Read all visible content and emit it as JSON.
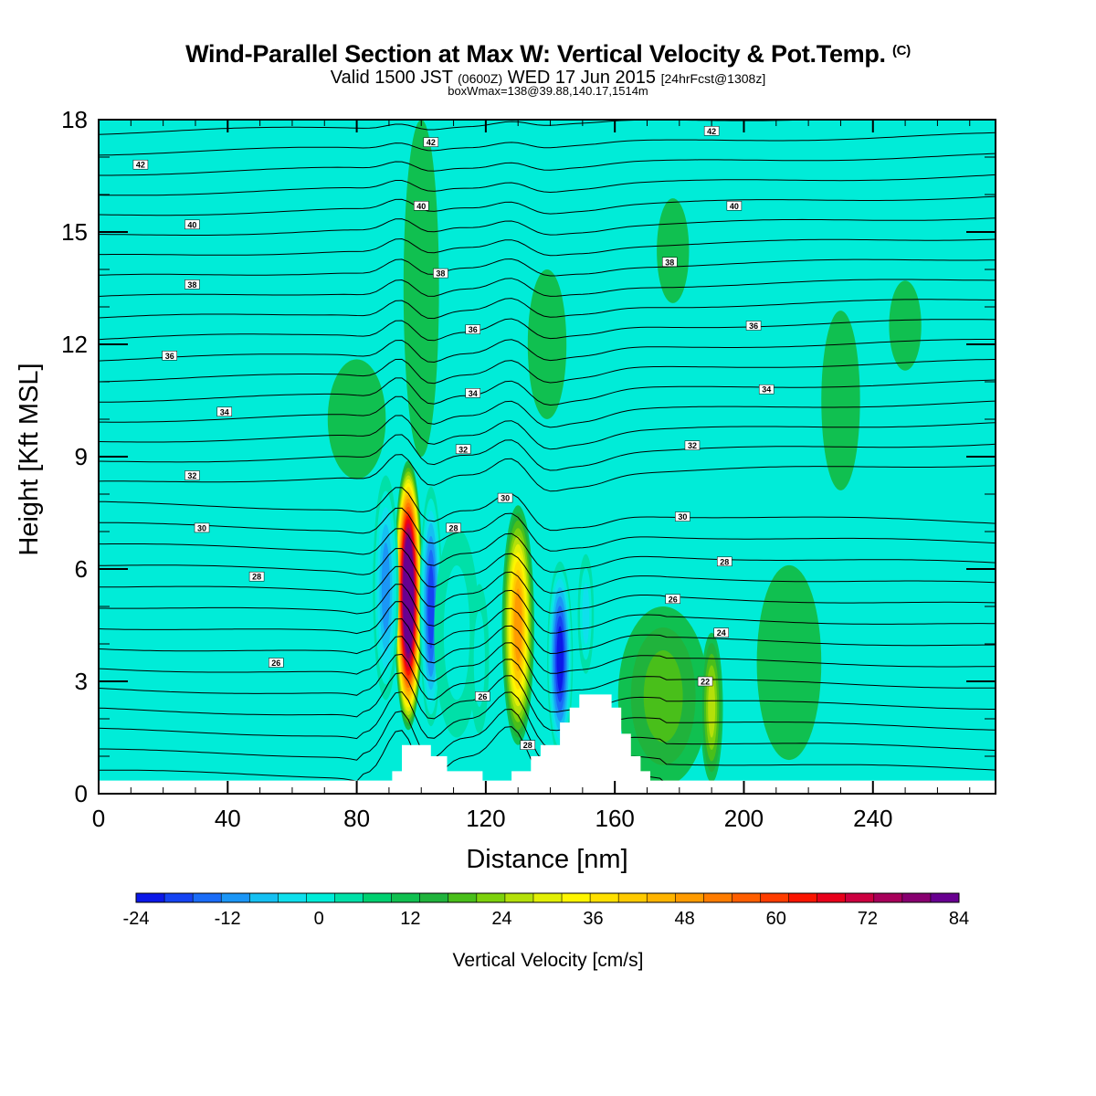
{
  "header": {
    "title_main": "Wind-Parallel Section at Max W: Vertical Velocity & Pot.Temp.",
    "title_mark": "(C)",
    "valid_prefix": "Valid 1500 JST",
    "valid_z": "(0600Z)",
    "valid_date": "WED 17 Jun 2015",
    "valid_fcst": "[24hrFcst@1308z]",
    "boxwmax": "boxWmax=138@39.88,140.17,1514m"
  },
  "chart_data": {
    "type": "heatmap",
    "xlabel": "Distance [nm]",
    "ylabel": "Height [Kft MSL]",
    "xlim": [
      0,
      278
    ],
    "ylim": [
      0,
      18
    ],
    "x_ticks": [
      0,
      40,
      80,
      120,
      160,
      200,
      240
    ],
    "y_ticks": [
      0,
      3,
      6,
      9,
      12,
      15,
      18
    ],
    "colorbar": {
      "title": "Vertical Velocity [cm/s]",
      "ticks": [
        -24,
        -12,
        0,
        12,
        24,
        36,
        48,
        60,
        72,
        84
      ],
      "levels": [
        -24,
        -21,
        -18,
        -15,
        -12,
        -9,
        -6,
        -3,
        0,
        3,
        6,
        9,
        12,
        15,
        18,
        21,
        24,
        27,
        30,
        33,
        36,
        39,
        42,
        45,
        48,
        51,
        54,
        57,
        60,
        63,
        66,
        69,
        72,
        75,
        78,
        81,
        84
      ],
      "colors": [
        "#0b18e8",
        "#1543f2",
        "#1a6cf7",
        "#1b96f6",
        "#15c0f2",
        "#0fdfec",
        "#00ecd8",
        "#00e0a8",
        "#00d070",
        "#10c050",
        "#20b33c",
        "#49bf1a",
        "#7dd10c",
        "#b4e00a",
        "#e2ef05",
        "#fff500",
        "#ffe000",
        "#ffca00",
        "#ffb400",
        "#ff9b00",
        "#ff7c00",
        "#ff5e00",
        "#ff3d00",
        "#fa1500",
        "#e8001b",
        "#cc0040",
        "#a8005a",
        "#880070",
        "#680090"
      ],
      "background_level": "0 to 3",
      "background_color": "#00ecd8"
    },
    "theta_contour_labels": [
      {
        "x": 13,
        "y": 16.8,
        "text": "42"
      },
      {
        "x": 103,
        "y": 17.4,
        "text": "42"
      },
      {
        "x": 190,
        "y": 17.7,
        "text": "42"
      },
      {
        "x": 29,
        "y": 15.2,
        "text": "40"
      },
      {
        "x": 100,
        "y": 15.7,
        "text": "40"
      },
      {
        "x": 197,
        "y": 15.7,
        "text": "40"
      },
      {
        "x": 29,
        "y": 13.6,
        "text": "38"
      },
      {
        "x": 106,
        "y": 13.9,
        "text": "38"
      },
      {
        "x": 177,
        "y": 14.2,
        "text": "38"
      },
      {
        "x": 22,
        "y": 11.7,
        "text": "36"
      },
      {
        "x": 116,
        "y": 12.4,
        "text": "36"
      },
      {
        "x": 203,
        "y": 12.5,
        "text": "36"
      },
      {
        "x": 39,
        "y": 10.2,
        "text": "34"
      },
      {
        "x": 116,
        "y": 10.7,
        "text": "34"
      },
      {
        "x": 207,
        "y": 10.8,
        "text": "34"
      },
      {
        "x": 29,
        "y": 8.5,
        "text": "32"
      },
      {
        "x": 113,
        "y": 9.2,
        "text": "32"
      },
      {
        "x": 184,
        "y": 9.3,
        "text": "32"
      },
      {
        "x": 32,
        "y": 7.1,
        "text": "30"
      },
      {
        "x": 126,
        "y": 7.9,
        "text": "30"
      },
      {
        "x": 181,
        "y": 7.4,
        "text": "30"
      },
      {
        "x": 49,
        "y": 5.8,
        "text": "28"
      },
      {
        "x": 110,
        "y": 7.1,
        "text": "28"
      },
      {
        "x": 194,
        "y": 6.2,
        "text": "28"
      },
      {
        "x": 178,
        "y": 5.2,
        "text": "26"
      },
      {
        "x": 55,
        "y": 3.5,
        "text": "26"
      },
      {
        "x": 193,
        "y": 4.3,
        "text": "24"
      },
      {
        "x": 188,
        "y": 3.0,
        "text": "22"
      },
      {
        "x": 119,
        "y": 2.6,
        "text": "26"
      },
      {
        "x": 133,
        "y": 1.3,
        "text": "28"
      }
    ],
    "terrain": {
      "x": [
        0,
        91,
        91,
        94,
        94,
        103,
        103,
        108,
        108,
        119,
        119,
        128,
        128,
        134,
        134,
        137,
        137,
        143,
        143,
        146,
        146,
        149,
        149,
        151,
        151,
        159,
        159,
        162,
        162,
        165,
        165,
        168,
        168,
        171,
        171,
        278
      ],
      "y": [
        0.35,
        0.35,
        0.6,
        0.6,
        1.3,
        1.3,
        1.0,
        1.0,
        0.6,
        0.6,
        0.35,
        0.35,
        0.6,
        0.6,
        1.0,
        1.0,
        1.3,
        1.3,
        1.9,
        1.9,
        2.3,
        2.3,
        2.65,
        2.65,
        2.65,
        2.65,
        2.3,
        2.3,
        1.6,
        1.6,
        1.0,
        1.0,
        0.6,
        0.6,
        0.35,
        0.35
      ]
    },
    "w_features": [
      {
        "x": 96,
        "y": 5.3,
        "rx": 4.5,
        "ry": 3.6,
        "w": 75
      },
      {
        "x": 103,
        "y": 5.0,
        "rx": 3.5,
        "ry": 3.2,
        "w": -22
      },
      {
        "x": 89,
        "y": 5.5,
        "rx": 4.0,
        "ry": 3.0,
        "w": -15
      },
      {
        "x": 111,
        "y": 4.3,
        "rx": 7.0,
        "ry": 2.8,
        "w": -6
      },
      {
        "x": 118,
        "y": 3.6,
        "rx": 3.0,
        "ry": 2.0,
        "w": -6
      },
      {
        "x": 130,
        "y": 4.5,
        "rx": 5.0,
        "ry": 3.2,
        "w": 33
      },
      {
        "x": 143,
        "y": 3.6,
        "rx": 4.0,
        "ry": 2.6,
        "w": -24
      },
      {
        "x": 151,
        "y": 4.8,
        "rx": 2.5,
        "ry": 1.6,
        "w": -9
      },
      {
        "x": 175,
        "y": 2.6,
        "rx": 14,
        "ry": 2.4,
        "w": 9
      },
      {
        "x": 190,
        "y": 2.3,
        "rx": 3.5,
        "ry": 2.0,
        "w": 15
      },
      {
        "x": 214,
        "y": 3.5,
        "rx": 10,
        "ry": 2.6,
        "w": 4
      },
      {
        "x": 100,
        "y": 13.5,
        "rx": 5.5,
        "ry": 4.5,
        "w": 4
      },
      {
        "x": 80,
        "y": 10.0,
        "rx": 9,
        "ry": 1.6,
        "w": 4
      },
      {
        "x": 230,
        "y": 10.5,
        "rx": 6,
        "ry": 2.4,
        "w": 4
      },
      {
        "x": 250,
        "y": 12.5,
        "rx": 5,
        "ry": 1.2,
        "w": 4
      },
      {
        "x": 178,
        "y": 14.5,
        "rx": 5,
        "ry": 1.4,
        "w": 4
      },
      {
        "x": 139,
        "y": 12.0,
        "rx": 6,
        "ry": 2.0,
        "w": 4
      }
    ]
  },
  "colors": {
    "background": "#ffffff",
    "plot_border": "#000000",
    "contour_line": "#000000",
    "terrain": "#ffffff"
  }
}
